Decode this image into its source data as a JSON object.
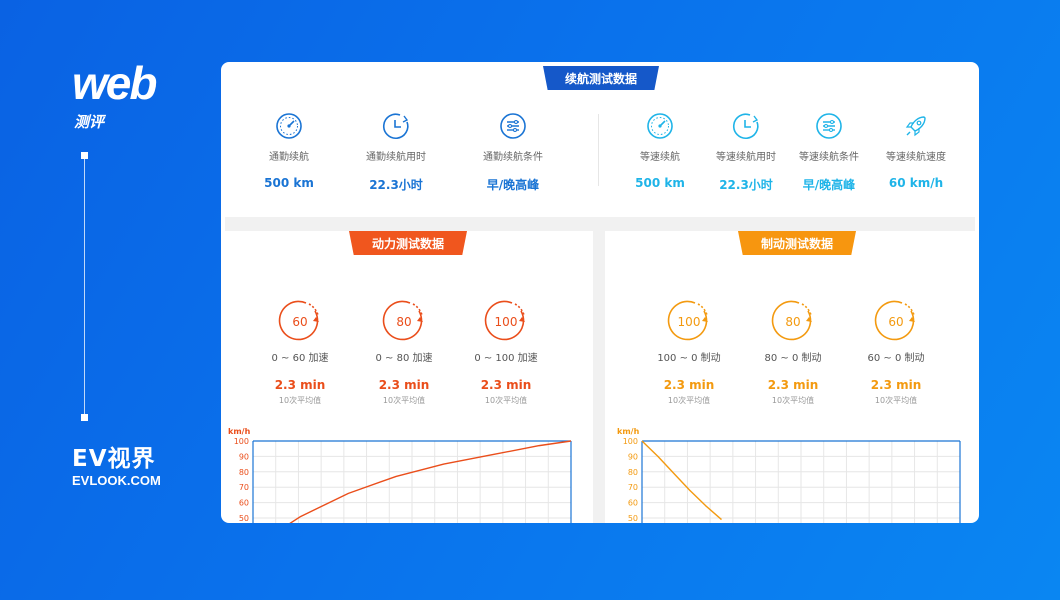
{
  "brand": {
    "web": "web",
    "sub": "测评",
    "ev": "EV视界",
    "site": "EVLOOK.COM"
  },
  "range": {
    "title": "续航测试数据",
    "items": [
      {
        "icon": "gauge-icon",
        "label": "通勤续航",
        "value": "500 km"
      },
      {
        "icon": "clock-icon",
        "label": "通勤续航用时",
        "value": "22.3小时"
      },
      {
        "icon": "settings-sliders-icon",
        "label": "通勤续航条件",
        "value": "早/晚高峰"
      },
      {
        "icon": "gauge-icon",
        "label": "等速续航",
        "value": "500 km"
      },
      {
        "icon": "clock-icon",
        "label": "等速续航用时",
        "value": "22.3小时"
      },
      {
        "icon": "settings-sliders-icon",
        "label": "等速续航条件",
        "value": "早/晚高峰"
      },
      {
        "icon": "rocket-icon",
        "label": "等速续航速度",
        "value": "60 km/h"
      }
    ]
  },
  "power": {
    "title": "动力测试数据",
    "items": [
      {
        "gauge": "60",
        "label": "0 ~ 60 加速",
        "value": "2.3 min",
        "note": "10次平均值"
      },
      {
        "gauge": "80",
        "label": "0 ~ 80 加速",
        "value": "2.3 min",
        "note": "10次平均值"
      },
      {
        "gauge": "100",
        "label": "0 ~ 100 加速",
        "value": "2.3 min",
        "note": "10次平均值"
      }
    ]
  },
  "brake": {
    "title": "制动测试数据",
    "items": [
      {
        "gauge": "100",
        "label": "100 ~ 0 制动",
        "value": "2.3 min",
        "note": "10次平均值"
      },
      {
        "gauge": "80",
        "label": "80 ~ 0 制动",
        "value": "2.3 min",
        "note": "10次平均值"
      },
      {
        "gauge": "60",
        "label": "60 ~ 0 制动",
        "value": "2.3 min",
        "note": "10次平均值"
      }
    ]
  },
  "colors": {
    "blue": "#1a74d4",
    "cyan": "#1fb4e8",
    "red": "#ea4e1b",
    "orange": "#f39a10"
  },
  "chart_data": [
    {
      "type": "line",
      "ylabel": "km/h",
      "yticks": [
        100,
        90,
        80,
        70,
        60,
        50
      ],
      "ylim": [
        50,
        100
      ],
      "grid": true,
      "color": "#ea4e1b",
      "x": [
        0,
        0.15,
        0.3,
        0.45,
        0.6,
        0.75,
        0.9,
        1.0
      ],
      "values": [
        31,
        51,
        66,
        77,
        85,
        91,
        97,
        100
      ]
    },
    {
      "type": "line",
      "ylabel": "km/h",
      "yticks": [
        100,
        90,
        80,
        70,
        60,
        50
      ],
      "ylim": [
        50,
        100
      ],
      "grid": true,
      "color": "#f39a10",
      "x": [
        0,
        0.05,
        0.1,
        0.15,
        0.2,
        0.25
      ],
      "values": [
        100,
        90,
        79,
        68,
        58,
        49
      ]
    }
  ]
}
